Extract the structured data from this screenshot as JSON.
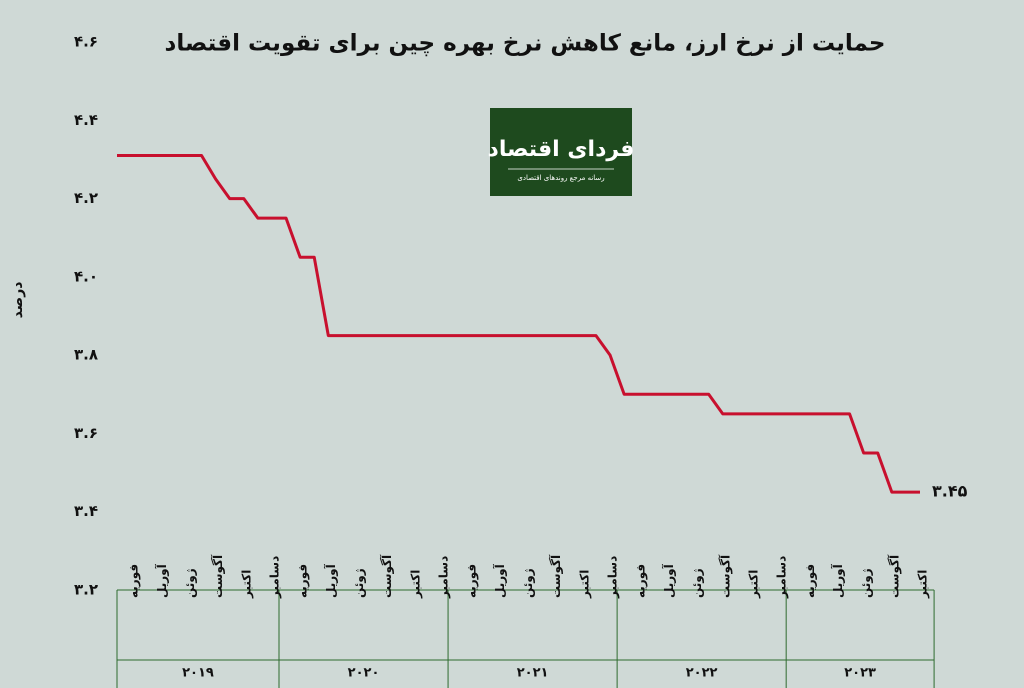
{
  "chart_data": {
    "type": "line",
    "title": "حمایت از نرخ ارز، مانع کاهش نرخ بهره چین برای تقویت اقتصاد",
    "logo_title": "فردای اقتصاد",
    "logo_subtitle": "رسانه مرجع روندهای اقتصادی",
    "y_label": "درصد",
    "ylim": [
      3.2,
      4.6
    ],
    "yticks": [
      {
        "value": 3.2,
        "label": "۳.۲"
      },
      {
        "value": 3.4,
        "label": "۳.۴"
      },
      {
        "value": 3.6,
        "label": "۳.۶"
      },
      {
        "value": 3.8,
        "label": "۳.۸"
      },
      {
        "value": 4.0,
        "label": "۴.۰"
      },
      {
        "value": 4.2,
        "label": "۴.۲"
      },
      {
        "value": 4.4,
        "label": "۴.۴"
      },
      {
        "value": 4.6,
        "label": "۴.۶"
      }
    ],
    "grid": false,
    "year_labels": [
      "۲۰۱۹",
      "۲۰۲۰",
      "۲۰۲۱",
      "۲۰۲۲",
      "۲۰۲۳"
    ],
    "categories": [
      null,
      "فوریه",
      null,
      "آوریل",
      null,
      "ژوئن",
      null,
      "آگوست",
      null,
      "اکتبر",
      null,
      "دسامبر",
      null,
      "فوریه",
      null,
      "آوریل",
      null,
      "ژوئن",
      null,
      "آگوست",
      null,
      "اکتبر",
      null,
      "دسامبر",
      null,
      "فوریه",
      null,
      "آوریل",
      null,
      "ژوئن",
      null,
      "آگوست",
      null,
      "اکتبر",
      null,
      "دسامبر",
      null,
      "فوریه",
      null,
      "آوریل",
      null,
      "ژوئن",
      null,
      "آگوست",
      null,
      "اکتبر",
      null,
      "دسامبر",
      null,
      "فوریه",
      null,
      "آوریل",
      null,
      "ژوئن",
      null,
      "آگوست",
      null,
      "اکتبر"
    ],
    "color": "#c8102e",
    "values": [
      4.31,
      4.31,
      4.31,
      4.31,
      4.31,
      4.31,
      4.31,
      4.25,
      4.2,
      4.2,
      4.15,
      4.15,
      4.15,
      4.05,
      4.05,
      3.85,
      3.85,
      3.85,
      3.85,
      3.85,
      3.85,
      3.85,
      3.85,
      3.85,
      3.85,
      3.85,
      3.85,
      3.85,
      3.85,
      3.85,
      3.85,
      3.85,
      3.85,
      3.85,
      3.85,
      3.8,
      3.7,
      3.7,
      3.7,
      3.7,
      3.7,
      3.7,
      3.7,
      3.65,
      3.65,
      3.65,
      3.65,
      3.65,
      3.65,
      3.65,
      3.65,
      3.65,
      3.65,
      3.55,
      3.55,
      3.45,
      3.45,
      3.45
    ],
    "value_labels": [
      null,
      null,
      null,
      null,
      null,
      null,
      null,
      null,
      null,
      null,
      null,
      null,
      null,
      null,
      null,
      null,
      null,
      null,
      null,
      null,
      null,
      null,
      null,
      null,
      null,
      null,
      null,
      null,
      null,
      null,
      null,
      null,
      null,
      null,
      null,
      null,
      null,
      null,
      null,
      null,
      null,
      null,
      null,
      null,
      null,
      null,
      null,
      null,
      null,
      null,
      null,
      null,
      null,
      null,
      null,
      null,
      null,
      "۳.۴۵"
    ]
  }
}
